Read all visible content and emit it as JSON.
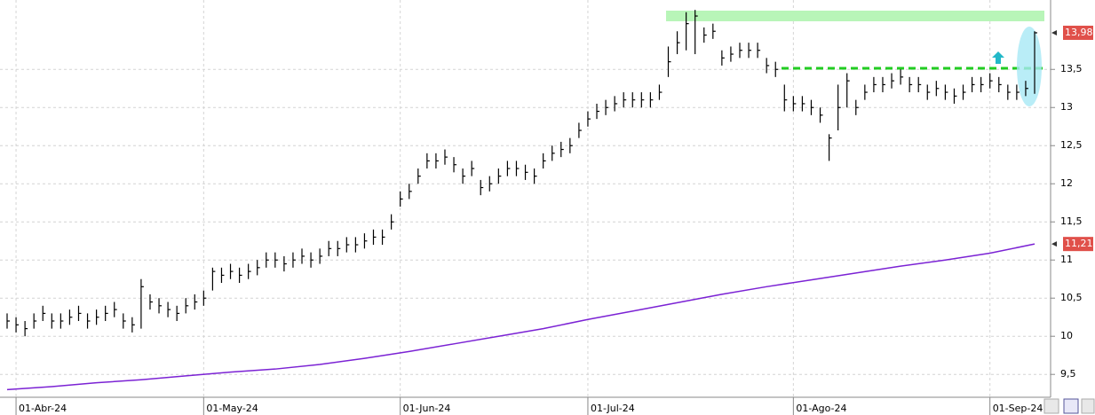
{
  "chart_data": {
    "type": "ohlc",
    "categories": [
      null,
      "01-Abr-24",
      null,
      null,
      null,
      null,
      null,
      null,
      null,
      null,
      null,
      null,
      null,
      null,
      null,
      null,
      null,
      null,
      null,
      null,
      null,
      null,
      "01-May-24",
      null,
      null,
      null,
      null,
      null,
      null,
      null,
      null,
      null,
      null,
      null,
      null,
      null,
      null,
      null,
      null,
      null,
      null,
      null,
      null,
      null,
      "01-Jun-24",
      null,
      null,
      null,
      null,
      null,
      null,
      null,
      null,
      null,
      null,
      null,
      null,
      null,
      null,
      null,
      null,
      null,
      null,
      null,
      null,
      "01-Jul-24",
      null,
      null,
      null,
      null,
      null,
      null,
      null,
      null,
      null,
      null,
      null,
      null,
      null,
      null,
      null,
      null,
      null,
      null,
      null,
      null,
      null,
      null,
      "01-Ago-24",
      null,
      null,
      null,
      null,
      null,
      null,
      null,
      null,
      null,
      null,
      null,
      null,
      null,
      null,
      null,
      null,
      null,
      null,
      null,
      null,
      null,
      "01-Sep-24",
      null,
      null,
      null,
      null,
      null
    ],
    "close": [
      10.2,
      10.15,
      10.1,
      10.2,
      10.3,
      10.2,
      10.2,
      10.25,
      10.3,
      10.2,
      10.25,
      10.3,
      10.35,
      10.2,
      10.15,
      10.65,
      10.45,
      10.4,
      10.35,
      10.3,
      10.4,
      10.45,
      10.5,
      10.85,
      10.8,
      10.85,
      10.8,
      10.85,
      10.9,
      11.0,
      11.0,
      10.95,
      11.0,
      11.05,
      11.0,
      11.05,
      11.15,
      11.15,
      11.2,
      11.2,
      11.25,
      11.3,
      11.3,
      11.5,
      11.8,
      11.9,
      12.1,
      12.3,
      12.3,
      12.35,
      12.25,
      12.1,
      12.2,
      11.95,
      12.0,
      12.1,
      12.2,
      12.2,
      12.15,
      12.1,
      12.3,
      12.4,
      12.45,
      12.5,
      12.7,
      12.85,
      12.95,
      13.0,
      13.05,
      13.1,
      13.1,
      13.1,
      13.1,
      13.2,
      13.6,
      13.85,
      14.1,
      14.2,
      13.95,
      14.0,
      13.65,
      13.7,
      13.75,
      13.75,
      13.75,
      13.55,
      13.5,
      13.1,
      13.05,
      13.05,
      13.0,
      12.9,
      12.6,
      13.0,
      13.35,
      13.0,
      13.2,
      13.3,
      13.3,
      13.35,
      13.4,
      13.3,
      13.3,
      13.2,
      13.25,
      13.2,
      13.15,
      13.2,
      13.3,
      13.3,
      13.35,
      13.3,
      13.2,
      13.2,
      13.25,
      13.98
    ],
    "high": [
      10.3,
      10.25,
      10.2,
      10.3,
      10.4,
      10.3,
      10.3,
      10.35,
      10.4,
      10.3,
      10.35,
      10.4,
      10.45,
      10.3,
      10.25,
      10.75,
      10.55,
      10.5,
      10.45,
      10.4,
      10.5,
      10.55,
      10.6,
      10.9,
      10.9,
      10.95,
      10.9,
      10.95,
      11.0,
      11.1,
      11.1,
      11.05,
      11.1,
      11.15,
      11.1,
      11.15,
      11.25,
      11.25,
      11.3,
      11.3,
      11.35,
      11.4,
      11.4,
      11.6,
      11.9,
      12.0,
      12.2,
      12.4,
      12.4,
      12.45,
      12.35,
      12.2,
      12.3,
      12.05,
      12.1,
      12.2,
      12.3,
      12.3,
      12.25,
      12.2,
      12.4,
      12.5,
      12.55,
      12.6,
      12.8,
      12.95,
      13.05,
      13.1,
      13.15,
      13.2,
      13.2,
      13.2,
      13.2,
      13.3,
      13.8,
      14.0,
      14.25,
      14.28,
      14.05,
      14.1,
      13.75,
      13.8,
      13.85,
      13.85,
      13.85,
      13.65,
      13.6,
      13.3,
      13.15,
      13.15,
      13.1,
      13.0,
      12.65,
      13.3,
      13.45,
      13.1,
      13.3,
      13.4,
      13.4,
      13.45,
      13.5,
      13.4,
      13.4,
      13.3,
      13.35,
      13.3,
      13.25,
      13.3,
      13.4,
      13.4,
      13.45,
      13.4,
      13.3,
      13.3,
      13.35,
      14.0
    ],
    "low": [
      10.1,
      10.05,
      10.0,
      10.1,
      10.2,
      10.1,
      10.1,
      10.15,
      10.2,
      10.1,
      10.15,
      10.2,
      10.25,
      10.1,
      10.05,
      10.1,
      10.35,
      10.3,
      10.25,
      10.2,
      10.3,
      10.35,
      10.4,
      10.6,
      10.7,
      10.75,
      10.7,
      10.75,
      10.8,
      10.9,
      10.9,
      10.85,
      10.9,
      10.95,
      10.9,
      10.95,
      11.05,
      11.05,
      11.1,
      11.1,
      11.15,
      11.2,
      11.2,
      11.4,
      11.7,
      11.8,
      12.0,
      12.2,
      12.2,
      12.25,
      12.15,
      12.0,
      12.1,
      11.85,
      11.9,
      12.0,
      12.1,
      12.1,
      12.05,
      12.0,
      12.2,
      12.3,
      12.35,
      12.4,
      12.6,
      12.75,
      12.85,
      12.9,
      12.95,
      13.0,
      13.0,
      13.0,
      13.0,
      13.1,
      13.4,
      13.7,
      13.75,
      13.7,
      13.85,
      13.9,
      13.55,
      13.6,
      13.65,
      13.65,
      13.65,
      13.45,
      13.4,
      12.95,
      12.95,
      12.95,
      12.9,
      12.8,
      12.3,
      12.7,
      13.0,
      12.9,
      13.1,
      13.2,
      13.2,
      13.25,
      13.3,
      13.2,
      13.2,
      13.1,
      13.15,
      13.1,
      13.05,
      13.1,
      13.2,
      13.2,
      13.25,
      13.2,
      13.1,
      13.1,
      13.15,
      13.18
    ],
    "color": "#000000",
    "average": {
      "color": "#7b22d4",
      "x": [
        0,
        5,
        10,
        15,
        20,
        25,
        30,
        35,
        40,
        45,
        50,
        55,
        60,
        65,
        70,
        75,
        80,
        85,
        90,
        95,
        100,
        105,
        110,
        115
      ],
      "values": [
        9.3,
        9.34,
        9.39,
        9.43,
        9.48,
        9.53,
        9.57,
        9.63,
        9.71,
        9.8,
        9.9,
        10.0,
        10.1,
        10.22,
        10.33,
        10.44,
        10.55,
        10.65,
        10.74,
        10.83,
        10.92,
        11.0,
        11.09,
        11.21
      ]
    },
    "price_tags": [
      {
        "value": 13.98,
        "label": "13,98"
      },
      {
        "value": 11.21,
        "label": "11,21"
      }
    ],
    "ylim": [
      9.2,
      14.41
    ],
    "yticks": [
      {
        "value": 9.5,
        "label": "9,5"
      },
      10,
      {
        "value": 10.5,
        "label": "10,5"
      },
      11,
      {
        "value": 11.5,
        "label": "11,5"
      },
      12,
      {
        "value": 12.5,
        "label": "12,5"
      },
      13,
      {
        "value": 13.5,
        "label": "13,5"
      }
    ],
    "grid": true
  }
}
